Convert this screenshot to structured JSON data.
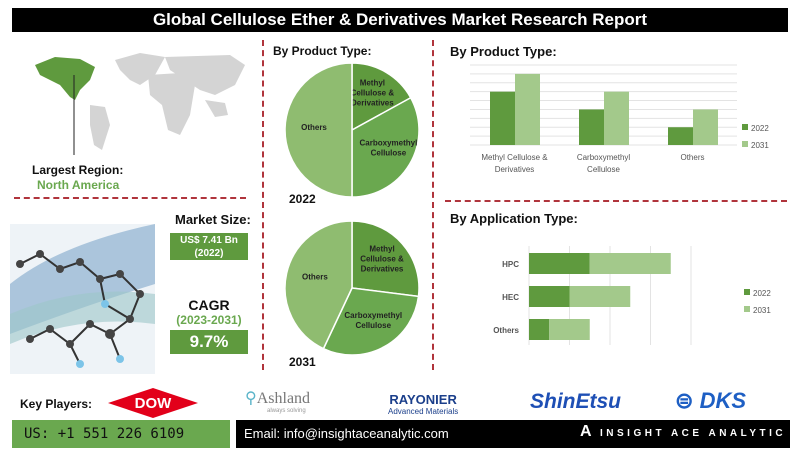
{
  "title": "Global Cellulose Ether & Derivatives Market Research Report",
  "region": {
    "label": "Largest Region:",
    "value": "North America"
  },
  "market_size": {
    "label": "Market Size:",
    "value": "US$ 7.41 Bn",
    "year": "(2022)"
  },
  "cagr": {
    "label": "CAGR",
    "period": "(2023-2031)",
    "value": "9.7%"
  },
  "pie_section": {
    "title": "By Product Type:"
  },
  "colors": {
    "dark": "#5f9a3e",
    "mid": "#6aa84f",
    "light": "#a3c98b",
    "others_pie": "#8fbc70",
    "red": "#b0343c"
  },
  "chart_data": [
    {
      "type": "pie",
      "title": "2022",
      "labels": [
        "Methyl Cellulose & Derivatives",
        "Carboxymethyl Cellulose",
        "Others"
      ],
      "values": [
        17,
        33,
        50
      ]
    },
    {
      "type": "pie",
      "title": "2031",
      "labels": [
        "Methyl Cellulose & Derivatives",
        "Carboxymethyl Cellulose",
        "Others"
      ],
      "values": [
        27,
        30,
        43
      ]
    },
    {
      "type": "bar",
      "title": "By Product Type:",
      "categories": [
        "Methyl Cellulose & Derivatives",
        "Carboxymethyl Cellulose",
        "Others"
      ],
      "series": [
        {
          "name": "2022",
          "values": [
            6,
            4,
            2
          ]
        },
        {
          "name": "2031",
          "values": [
            8,
            6,
            4
          ]
        }
      ],
      "ylim": [
        0,
        9
      ],
      "grid": true,
      "legend": "right"
    },
    {
      "type": "bar",
      "orientation": "horizontal",
      "stacked": true,
      "title": "By Application Type:",
      "categories": [
        "HPC",
        "HEC",
        "Others"
      ],
      "series": [
        {
          "name": "2022",
          "values": [
            1.5,
            1.0,
            0.5
          ]
        },
        {
          "name": "2031",
          "values": [
            2.0,
            1.5,
            1.0
          ]
        }
      ],
      "xlim": [
        0,
        4
      ],
      "grid": true,
      "legend": "right"
    }
  ],
  "footer": {
    "key_players_label": "Key Players:",
    "players": [
      "DOW",
      "Ashland",
      "always solving",
      "RAYONIER",
      "Advanced Materials",
      "ShinEtsu",
      "DKS"
    ],
    "phone": "US: +1 551 226 6109",
    "email": "Email: info@insightaceanalytic.com",
    "brand": "INSIGHT ACE ANALYTIC"
  }
}
